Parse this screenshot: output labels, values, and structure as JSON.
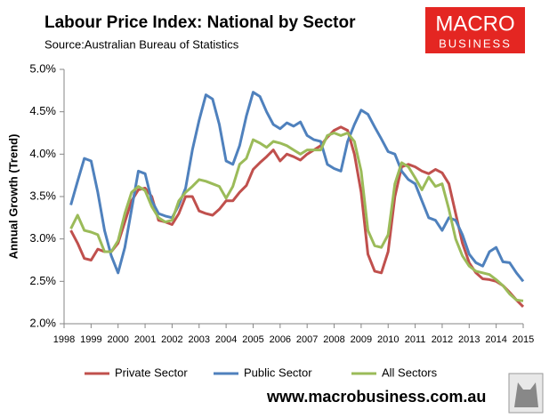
{
  "chart_data": {
    "type": "line",
    "title": "Labour Price Index: National by Sector",
    "source": "Source:Australian Bureau of Statistics",
    "brand": [
      "MACRO",
      "BUSINESS"
    ],
    "footer": "www.macrobusiness.com.au",
    "y_label": "Annual Growth (Trend)",
    "x": [
      1998.25,
      1998.5,
      1998.75,
      1999.0,
      1999.25,
      1999.5,
      1999.75,
      2000.0,
      2000.25,
      2000.5,
      2000.75,
      2001.0,
      2001.25,
      2001.5,
      2001.75,
      2002.0,
      2002.25,
      2002.5,
      2002.75,
      2003.0,
      2003.25,
      2003.5,
      2003.75,
      2004.0,
      2004.25,
      2004.5,
      2004.75,
      2005.0,
      2005.25,
      2005.5,
      2005.75,
      2006.0,
      2006.25,
      2006.5,
      2006.75,
      2007.0,
      2007.25,
      2007.5,
      2007.75,
      2008.0,
      2008.25,
      2008.5,
      2008.75,
      2009.0,
      2009.25,
      2009.5,
      2009.75,
      2010.0,
      2010.25,
      2010.5,
      2010.75,
      2011.0,
      2011.25,
      2011.5,
      2011.75,
      2012.0,
      2012.25,
      2012.5,
      2012.75,
      2013.0,
      2013.25,
      2013.5,
      2013.75,
      2014.0,
      2014.25,
      2014.5,
      2014.75,
      2015.0
    ],
    "series": [
      {
        "name": "Private Sector",
        "color": "#c0504d",
        "values": [
          3.1,
          2.95,
          2.77,
          2.75,
          2.88,
          2.85,
          2.85,
          2.95,
          3.2,
          3.45,
          3.58,
          3.6,
          3.5,
          3.22,
          3.2,
          3.17,
          3.3,
          3.5,
          3.5,
          3.33,
          3.3,
          3.28,
          3.35,
          3.45,
          3.45,
          3.55,
          3.63,
          3.82,
          3.9,
          3.97,
          4.05,
          3.92,
          4.0,
          3.97,
          3.93,
          4.0,
          4.05,
          4.1,
          4.2,
          4.28,
          4.32,
          4.28,
          4.0,
          3.55,
          2.82,
          2.62,
          2.6,
          2.85,
          3.5,
          3.85,
          3.88,
          3.85,
          3.8,
          3.77,
          3.82,
          3.78,
          3.65,
          3.3,
          2.95,
          2.72,
          2.6,
          2.53,
          2.52,
          2.5,
          2.45,
          2.37,
          2.28,
          2.2
        ]
      },
      {
        "name": "Public Sector",
        "color": "#4f81bd",
        "values": [
          3.4,
          3.68,
          3.95,
          3.92,
          3.55,
          3.1,
          2.8,
          2.6,
          2.9,
          3.35,
          3.8,
          3.77,
          3.45,
          3.3,
          3.27,
          3.25,
          3.4,
          3.6,
          4.05,
          4.4,
          4.7,
          4.65,
          4.35,
          3.92,
          3.88,
          4.1,
          4.45,
          4.73,
          4.68,
          4.5,
          4.35,
          4.3,
          4.37,
          4.33,
          4.38,
          4.22,
          4.17,
          4.15,
          3.88,
          3.83,
          3.8,
          4.15,
          4.35,
          4.52,
          4.47,
          4.32,
          4.18,
          4.03,
          4.0,
          3.8,
          3.7,
          3.65,
          3.45,
          3.25,
          3.22,
          3.1,
          3.25,
          3.22,
          3.05,
          2.82,
          2.72,
          2.68,
          2.85,
          2.9,
          2.73,
          2.72,
          2.6,
          2.5
        ]
      },
      {
        "name": "All Sectors",
        "color": "#9bbb59",
        "values": [
          3.12,
          3.28,
          3.1,
          3.08,
          3.05,
          2.85,
          2.85,
          2.98,
          3.3,
          3.55,
          3.62,
          3.57,
          3.38,
          3.25,
          3.2,
          3.22,
          3.45,
          3.55,
          3.62,
          3.7,
          3.68,
          3.65,
          3.62,
          3.48,
          3.62,
          3.88,
          3.95,
          4.17,
          4.13,
          4.08,
          4.15,
          4.13,
          4.1,
          4.05,
          4.0,
          4.05,
          4.05,
          4.05,
          4.22,
          4.25,
          4.22,
          4.25,
          4.15,
          3.8,
          3.1,
          2.92,
          2.9,
          3.05,
          3.65,
          3.9,
          3.85,
          3.72,
          3.58,
          3.73,
          3.62,
          3.65,
          3.35,
          3.0,
          2.8,
          2.68,
          2.62,
          2.6,
          2.58,
          2.52,
          2.45,
          2.35,
          2.28,
          2.27
        ]
      }
    ],
    "xlim": [
      1998,
      2015
    ],
    "xticks": [
      1998,
      1999,
      2000,
      2001,
      2002,
      2003,
      2004,
      2005,
      2006,
      2007,
      2008,
      2009,
      2010,
      2011,
      2012,
      2013,
      2014,
      2015
    ],
    "ylim": [
      2,
      5
    ],
    "yticks": [
      {
        "value": 2,
        "label": "2.0%"
      },
      {
        "value": 2.5,
        "label": "2.5%"
      },
      {
        "value": 3,
        "label": "3.0%"
      },
      {
        "value": 3.5,
        "label": "3.5%"
      },
      {
        "value": 4,
        "label": "4.0%"
      },
      {
        "value": 4.5,
        "label": "4.5%"
      },
      {
        "value": 5,
        "label": "5.0%"
      }
    ],
    "grid": false
  }
}
